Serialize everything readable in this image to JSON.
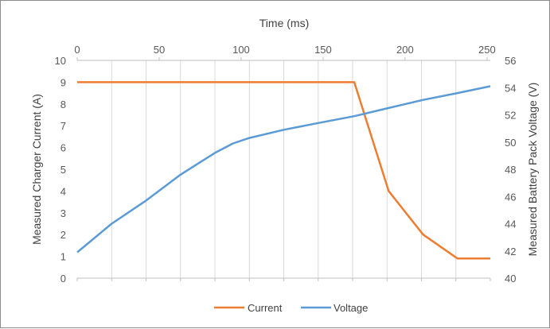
{
  "chart_data": {
    "type": "line",
    "xlabel": "Time (ms)",
    "ylabel": "Measured Charger Current (A)",
    "y2label": "Measured Battery Pack Voltage (V)",
    "xlim": [
      0,
      252
    ],
    "xticks": [
      0,
      50,
      100,
      150,
      200,
      250
    ],
    "ylim": [
      0,
      10
    ],
    "yticks": [
      0,
      1,
      2,
      3,
      4,
      5,
      6,
      7,
      8,
      9,
      10
    ],
    "y2lim": [
      40,
      56
    ],
    "y2ticks": [
      40,
      42,
      44,
      46,
      48,
      50,
      52,
      54,
      56
    ],
    "grid": "vertical",
    "legend": "bottom",
    "series": [
      {
        "name": "Current",
        "axis": "left",
        "color": "#ED7D31",
        "x": [
          0,
          169,
          190,
          211,
          232,
          252
        ],
        "y": [
          9,
          9,
          4,
          2,
          0.9,
          0.9
        ]
      },
      {
        "name": "Voltage",
        "axis": "right",
        "color": "#5B9BD5",
        "x": [
          0,
          21,
          42,
          63,
          84,
          95,
          105,
          126,
          147,
          169,
          190,
          211,
          232,
          252
        ],
        "y": [
          41.9,
          44.0,
          45.7,
          47.6,
          49.2,
          49.9,
          50.3,
          50.9,
          51.4,
          51.9,
          52.5,
          53.1,
          53.6,
          54.1
        ]
      }
    ]
  }
}
